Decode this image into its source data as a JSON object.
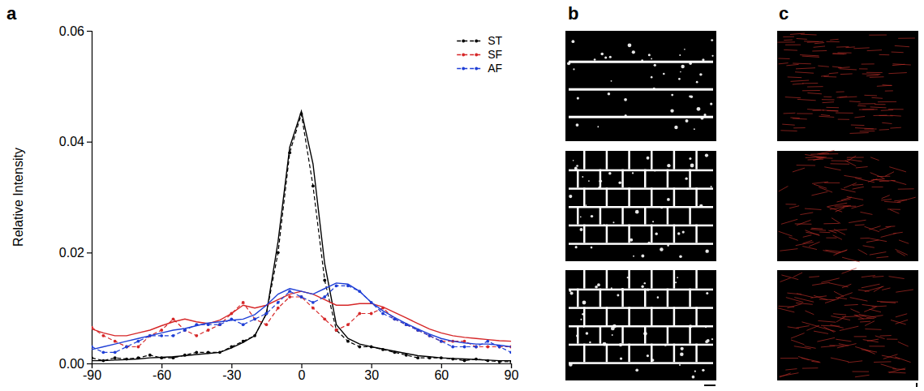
{
  "chart_data": {
    "type": "line",
    "ylabel": "Relative Intensity",
    "x": [
      -90,
      -85,
      -80,
      -75,
      -70,
      -65,
      -60,
      -55,
      -50,
      -45,
      -40,
      -35,
      -30,
      -25,
      -20,
      -15,
      -10,
      -5,
      0,
      5,
      10,
      15,
      20,
      25,
      30,
      35,
      40,
      45,
      50,
      55,
      60,
      65,
      70,
      75,
      80,
      85,
      90
    ],
    "xlim": [
      -90,
      90
    ],
    "xticks": [
      -90,
      -60,
      -30,
      0,
      30,
      60,
      90
    ],
    "ylim": [
      0,
      0.06
    ],
    "yticks": [
      {
        "value": 0,
        "label": "0.00"
      },
      0.02,
      0.04,
      0.06
    ],
    "legend": "upper right",
    "series": [
      {
        "name": "ST",
        "color": "#000000",
        "line_style": "dashed",
        "marker": "circle",
        "values": [
          0.001,
          0.0005,
          0.001,
          0.0008,
          0.001,
          0.0015,
          0.001,
          0.001,
          0.0015,
          0.002,
          0.002,
          0.002,
          0.003,
          0.004,
          0.005,
          0.009,
          0.02,
          0.038,
          0.045,
          0.032,
          0.015,
          0.006,
          0.004,
          0.003,
          0.003,
          0.0025,
          0.002,
          0.0015,
          0.001,
          0.001,
          0.001,
          0.0008,
          0.0005,
          0.0008,
          0.0005,
          0.0003,
          0.0003
        ]
      },
      {
        "color": "#000000",
        "line_style": "solid",
        "marker": "none",
        "values": [
          0.0005,
          0.0005,
          0.0006,
          0.0007,
          0.0008,
          0.001,
          0.0011,
          0.0012,
          0.0014,
          0.0016,
          0.0018,
          0.002,
          0.0028,
          0.0038,
          0.005,
          0.009,
          0.022,
          0.039,
          0.0455,
          0.036,
          0.018,
          0.007,
          0.0045,
          0.0035,
          0.003,
          0.0026,
          0.0022,
          0.0018,
          0.0014,
          0.0012,
          0.001,
          0.0009,
          0.0008,
          0.0007,
          0.0006,
          0.0005,
          0.0005
        ]
      },
      {
        "name": "SF",
        "color": "#d62728",
        "line_style": "dashed",
        "marker": "circle",
        "values": [
          0.0065,
          0.005,
          0.004,
          0.003,
          0.003,
          0.005,
          0.006,
          0.008,
          0.006,
          0.005,
          0.006,
          0.007,
          0.009,
          0.011,
          0.008,
          0.007,
          0.01,
          0.012,
          0.012,
          0.01,
          0.008,
          0.006,
          0.007,
          0.009,
          0.009,
          0.01,
          0.008,
          0.007,
          0.006,
          0.005,
          0.004,
          0.004,
          0.004,
          0.003,
          0.003,
          0.003,
          0.003
        ]
      },
      {
        "color": "#d62728",
        "line_style": "solid",
        "marker": "none",
        "values": [
          0.0062,
          0.0055,
          0.005,
          0.005,
          0.0055,
          0.006,
          0.0068,
          0.0075,
          0.008,
          0.0075,
          0.0072,
          0.0078,
          0.009,
          0.0105,
          0.01,
          0.0105,
          0.0115,
          0.0125,
          0.013,
          0.0125,
          0.0115,
          0.0105,
          0.0105,
          0.0108,
          0.0108,
          0.0102,
          0.0092,
          0.0082,
          0.0072,
          0.0062,
          0.0055,
          0.005,
          0.0047,
          0.0045,
          0.0043,
          0.0041,
          0.004
        ]
      },
      {
        "name": "AF",
        "color": "#1f3fd6",
        "line_style": "dashed",
        "marker": "circle",
        "values": [
          0.003,
          0.002,
          0.002,
          0.003,
          0.004,
          0.005,
          0.005,
          0.005,
          0.006,
          0.007,
          0.007,
          0.007,
          0.008,
          0.007,
          0.008,
          0.009,
          0.011,
          0.013,
          0.012,
          0.011,
          0.012,
          0.014,
          0.014,
          0.013,
          0.011,
          0.009,
          0.008,
          0.007,
          0.006,
          0.005,
          0.004,
          0.003,
          0.003,
          0.003,
          0.004,
          0.003,
          0.002
        ]
      },
      {
        "color": "#1f3fd6",
        "line_style": "solid",
        "marker": "none",
        "values": [
          0.0025,
          0.003,
          0.0035,
          0.004,
          0.0045,
          0.005,
          0.0055,
          0.006,
          0.0063,
          0.0068,
          0.0073,
          0.0075,
          0.0078,
          0.008,
          0.0088,
          0.0105,
          0.0125,
          0.0135,
          0.013,
          0.0125,
          0.0135,
          0.0145,
          0.0143,
          0.013,
          0.011,
          0.0095,
          0.0083,
          0.0072,
          0.0062,
          0.0053,
          0.0045,
          0.004,
          0.0037,
          0.0035,
          0.0035,
          0.0033,
          0.003
        ]
      }
    ]
  },
  "figure": {
    "panel_labels": [
      "a",
      "b",
      "c"
    ]
  }
}
